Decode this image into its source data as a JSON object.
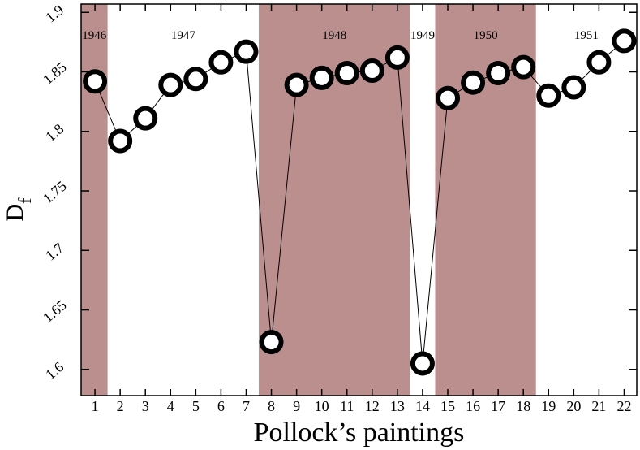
{
  "chart_data": {
    "type": "line",
    "xlabel": "Pollock’s paintings",
    "ylabel": "D",
    "ylabel_subscript": "f",
    "x": [
      1,
      2,
      3,
      4,
      5,
      6,
      7,
      8,
      9,
      10,
      11,
      12,
      13,
      14,
      15,
      16,
      17,
      18,
      19,
      20,
      21,
      22
    ],
    "values": [
      1.842,
      1.792,
      1.811,
      1.839,
      1.844,
      1.858,
      1.867,
      1.623,
      1.839,
      1.845,
      1.849,
      1.851,
      1.862,
      1.605,
      1.828,
      1.841,
      1.849,
      1.854,
      1.83,
      1.837,
      1.858,
      1.876
    ],
    "color": "#000000",
    "xlim": [
      0.45,
      22.5
    ],
    "ylim": [
      1.578,
      1.907
    ],
    "xticks": [
      1,
      2,
      3,
      4,
      5,
      6,
      7,
      8,
      9,
      10,
      11,
      12,
      13,
      14,
      15,
      16,
      17,
      18,
      19,
      20,
      21,
      22
    ],
    "yticks": [
      1.6,
      1.65,
      1.7,
      1.75,
      1.8,
      1.85,
      1.9
    ],
    "shade_color": "#bc8f8f",
    "periods": [
      {
        "label": "1946",
        "range": [
          0.45,
          1.5
        ],
        "shaded": true
      },
      {
        "label": "1947",
        "range": [
          1.5,
          7.5
        ],
        "shaded": false
      },
      {
        "label": "1948",
        "range": [
          7.5,
          13.5
        ],
        "shaded": true
      },
      {
        "label": "1949",
        "range": [
          13.5,
          14.5
        ],
        "shaded": false
      },
      {
        "label": "1950",
        "range": [
          14.5,
          18.5
        ],
        "shaded": true
      },
      {
        "label": "1951",
        "range": [
          18.5,
          22.5
        ],
        "shaded": false
      }
    ]
  }
}
